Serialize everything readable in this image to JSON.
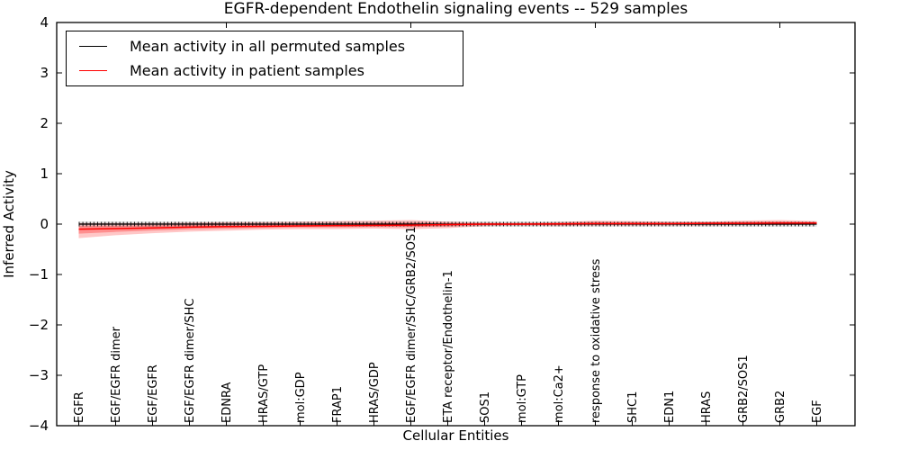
{
  "chart_data": {
    "type": "line",
    "title": "EGFR-dependent Endothelin signaling events -- 529 samples",
    "xlabel": "Cellular Entities",
    "ylabel": "Inferred Activity",
    "ylim": [
      -4,
      4
    ],
    "yticks": [
      4,
      3,
      2,
      1,
      0,
      -1,
      -2,
      -3,
      -4
    ],
    "ytick_labels": [
      "4",
      "3",
      "2",
      "1",
      "0",
      "−1",
      "−2",
      "−3",
      "−4"
    ],
    "grid": false,
    "legend_position": "upper left",
    "categories": [
      "EGFR",
      "EGF/EGFR dimer",
      "EGF/EGFR",
      "EGF/EGFR dimer/SHC",
      "EDNRA",
      "HRAS/GTP",
      "mol:GDP",
      "FRAP1",
      "HRAS/GDP",
      "EGF/EGFR dimer/SHC/GRB2/SOS1",
      "ETA receptor/Endothelin-1",
      "SOS1",
      "mol:GTP",
      "mol:Ca2+",
      "response to oxidative stress",
      "SHC1",
      "EDN1",
      "HRAS",
      "GRB2/SOS1",
      "GRB2",
      "EGF"
    ],
    "series": [
      {
        "name": "Mean activity in all permuted samples",
        "color": "#000000",
        "marker": "tick",
        "values": [
          0,
          0,
          0,
          0,
          0,
          0,
          0,
          0,
          0,
          0,
          0,
          0,
          0,
          0,
          0,
          0,
          0,
          0,
          0,
          0,
          0
        ]
      },
      {
        "name": "Mean activity in patient samples",
        "color": "#ff0000",
        "marker": "none",
        "values": [
          -0.1,
          -0.09,
          -0.075,
          -0.06,
          -0.05,
          -0.045,
          -0.035,
          -0.03,
          -0.025,
          -0.02,
          -0.01,
          0.0,
          0.0,
          0.005,
          0.01,
          0.01,
          0.01,
          0.015,
          0.015,
          0.02,
          0.02
        ]
      }
    ],
    "bands": {
      "patient": {
        "color": "#ff0000",
        "upper": [
          0.02,
          0.02,
          0.02,
          0.03,
          0.04,
          0.04,
          0.05,
          0.06,
          0.07,
          0.08,
          0.05,
          0.03,
          0.03,
          0.04,
          0.07,
          0.06,
          0.05,
          0.05,
          0.07,
          0.08,
          0.06
        ],
        "lower": [
          -0.28,
          -0.22,
          -0.18,
          -0.15,
          -0.13,
          -0.11,
          -0.1,
          -0.1,
          -0.09,
          -0.1,
          -0.08,
          -0.04,
          -0.03,
          -0.04,
          -0.03,
          -0.03,
          -0.03,
          -0.03,
          -0.02,
          -0.02,
          -0.01
        ]
      },
      "permuted": {
        "color": "#aaaaaa",
        "upper": 0.05,
        "lower": -0.05
      }
    }
  }
}
